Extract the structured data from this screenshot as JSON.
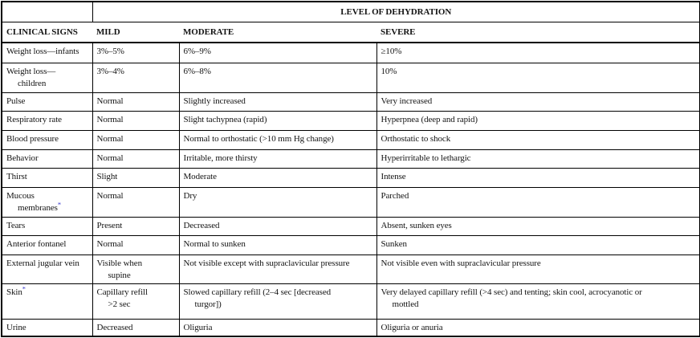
{
  "table": {
    "title": "LEVEL OF DEHYDRATION",
    "columns": [
      "CLINICAL SIGNS",
      "MILD",
      "MODERATE",
      "SEVERE"
    ],
    "marker_color": "#3333cc",
    "rows": [
      {
        "sign": "Weight loss—infants",
        "mild": "3%–5%",
        "moderate": "6%–9%",
        "severe": "≥10%"
      },
      {
        "sign": "Weight loss—\nchildren",
        "mild": "3%–4%",
        "moderate": "6%–8%",
        "severe": "10%"
      },
      {
        "sign": "Pulse",
        "mild": "Normal",
        "moderate": "Slightly increased",
        "severe": "Very increased"
      },
      {
        "sign": "Respiratory rate",
        "mild": "Normal",
        "moderate": "Slight tachypnea (rapid)",
        "severe": "Hyperpnea (deep and rapid)"
      },
      {
        "sign": "Blood pressure",
        "mild": "Normal",
        "moderate": "Normal to orthostatic (>10 mm Hg change)",
        "severe": "Orthostatic to shock"
      },
      {
        "sign": "Behavior",
        "mild": "Normal",
        "moderate": "Irritable, more thirsty",
        "severe": "Hyperirritable to lethargic"
      },
      {
        "sign": "Thirst",
        "mild": "Slight",
        "moderate": "Moderate",
        "severe": "Intense"
      },
      {
        "sign": "Mucous\nmembranes",
        "marker": "*",
        "mild": "Normal",
        "moderate": "Dry",
        "severe": "Parched"
      },
      {
        "sign": "Tears",
        "mild": "Present",
        "moderate": "Decreased",
        "severe": "Absent, sunken eyes"
      },
      {
        "sign": "Anterior fontanel",
        "mild": "Normal",
        "moderate": "Normal to sunken",
        "severe": "Sunken"
      },
      {
        "sign": "External jugular vein",
        "mild": "Visible when\nsupine",
        "moderate": "Not visible except with supraclavicular pressure",
        "severe": "Not visible even with supraclavicular pressure"
      },
      {
        "sign": "Skin",
        "marker": "*",
        "mild": "Capillary refill\n>2 sec",
        "moderate": "Slowed capillary refill (2–4 sec [decreased\nturgor])",
        "severe": "Very delayed capillary refill (>4 sec) and tenting; skin cool, acrocyanotic or\nmottled"
      },
      {
        "sign": "Urine",
        "mild": "Decreased",
        "moderate": "Oliguria",
        "severe": "Oliguria or anuria"
      }
    ]
  }
}
